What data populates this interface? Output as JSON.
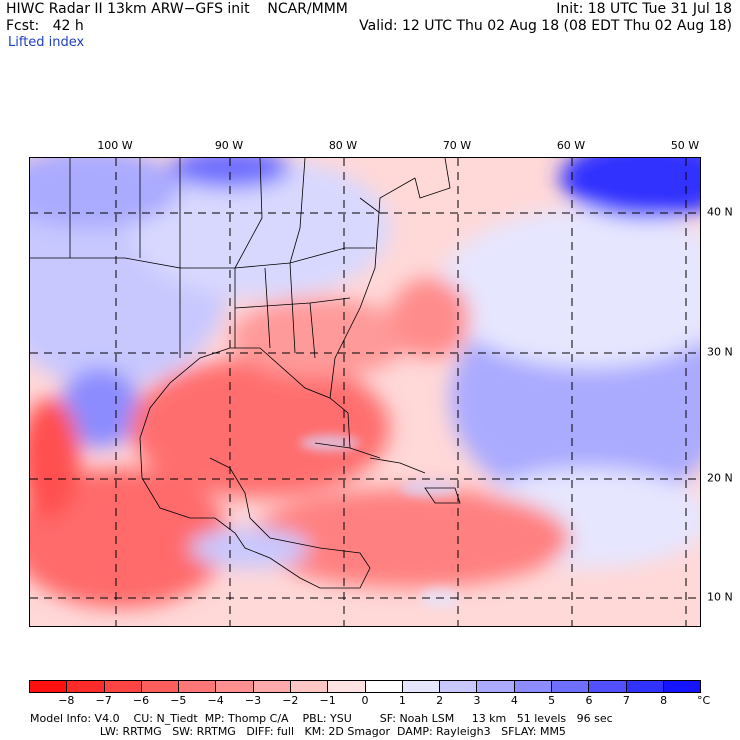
{
  "header": {
    "title": "HIWC Radar II 13km ARW−GFS init",
    "org": "NCAR/MMM",
    "init": "Init: 18 UTC Tue 31 Jul 18",
    "fcst": "Fcst:   42 h",
    "valid": "Valid: 12 UTC Thu 02 Aug 18 (08 EDT Thu 02 Aug 18)",
    "field": "Lifted index"
  },
  "map": {
    "lon_labels": [
      "100 W",
      "90 W",
      "80 W",
      "70 W",
      "60 W",
      "50 W"
    ],
    "lat_labels": [
      "40 N",
      "30 N",
      "20 N",
      "10 N"
    ],
    "grid": true
  },
  "colorbar": {
    "ticks": [
      "−8",
      "−7",
      "−6",
      "−5",
      "−4",
      "−3",
      "−2",
      "−1",
      "0",
      "1",
      "2",
      "3",
      "4",
      "5",
      "6",
      "7",
      "8"
    ],
    "unit": "°C",
    "colors": [
      "#ff1010",
      "#ff2a2a",
      "#ff4444",
      "#ff5e5e",
      "#ff7777",
      "#ff9090",
      "#ffaaaa",
      "#ffc6c6",
      "#ffe2e2",
      "#ffffff",
      "#e6e6ff",
      "#c8c8ff",
      "#aaaaff",
      "#8c8cff",
      "#6e6eff",
      "#5050ff",
      "#3232ff",
      "#1414ff"
    ]
  },
  "model_info": {
    "line1": "Model Info: V4.0    CU: N_Tiedt  MP: Thomp C/A    PBL: YSU        SF: Noah LSM     13 km   51 levels   96 sec",
    "line2": "                    LW: RRTMG   SW: RRTMG   DIFF: full   KM: 2D Smagor  DAMP: Rayleigh3   SFLAY: MM5"
  }
}
